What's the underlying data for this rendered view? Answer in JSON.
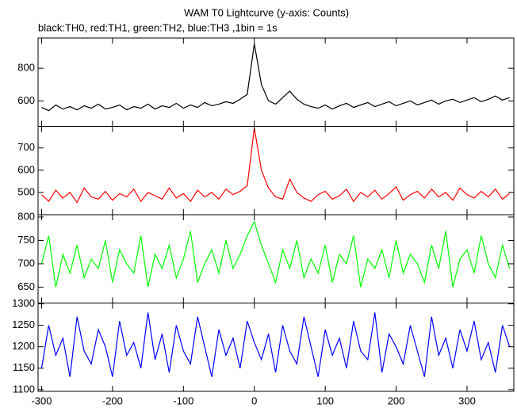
{
  "chart_data": {
    "type": "line",
    "title": "WAM T0 Lightcurve (y-axis: Counts)",
    "subtitle": "black:TH0, red:TH1, green:TH2, blue:TH3 ,1bin = 1s",
    "x": [
      -300,
      -290,
      -280,
      -270,
      -260,
      -250,
      -240,
      -230,
      -220,
      -210,
      -200,
      -190,
      -180,
      -170,
      -160,
      -150,
      -140,
      -130,
      -120,
      -110,
      -100,
      -90,
      -80,
      -70,
      -60,
      -50,
      -40,
      -30,
      -20,
      -10,
      0,
      10,
      20,
      30,
      40,
      50,
      60,
      70,
      80,
      90,
      100,
      110,
      120,
      130,
      140,
      150,
      160,
      170,
      180,
      190,
      200,
      210,
      220,
      230,
      240,
      250,
      260,
      270,
      280,
      290,
      300,
      310,
      320,
      330,
      340,
      350,
      360
    ],
    "xlim": [
      -305,
      366
    ],
    "xticks": [
      -300,
      -200,
      -100,
      0,
      100,
      200,
      300
    ],
    "series": [
      {
        "name": "TH0",
        "color": "#000000",
        "ylim": [
          444,
          985
        ],
        "yticks": [
          600,
          800
        ],
        "values": [
          560,
          540,
          575,
          550,
          565,
          545,
          570,
          555,
          580,
          550,
          560,
          575,
          545,
          565,
          555,
          580,
          550,
          570,
          560,
          585,
          555,
          575,
          560,
          590,
          570,
          580,
          595,
          585,
          610,
          640,
          950,
          700,
          600,
          580,
          620,
          660,
          610,
          580,
          565,
          555,
          575,
          550,
          570,
          585,
          560,
          575,
          590,
          565,
          580,
          595,
          570,
          585,
          600,
          575,
          590,
          605,
          580,
          600,
          610,
          590,
          605,
          620,
          595,
          610,
          630,
          605,
          620
        ]
      },
      {
        "name": "TH1",
        "color": "#ff0000",
        "ylim": [
          400,
          797
        ],
        "yticks": [
          500,
          600,
          700
        ],
        "values": [
          490,
          460,
          510,
          475,
          500,
          455,
          520,
          480,
          470,
          505,
          465,
          495,
          480,
          515,
          460,
          500,
          485,
          470,
          520,
          475,
          495,
          460,
          510,
          480,
          500,
          470,
          515,
          490,
          505,
          530,
          790,
          600,
          520,
          480,
          470,
          560,
          500,
          475,
          460,
          490,
          505,
          470,
          485,
          515,
          460,
          500,
          480,
          510,
          470,
          495,
          525,
          465,
          490,
          505,
          475,
          515,
          480,
          500,
          465,
          520,
          490,
          475,
          505,
          480,
          515,
          470,
          495
        ]
      },
      {
        "name": "TH2",
        "color": "#00ff00",
        "ylim": [
          616,
          805
        ],
        "yticks": [
          650,
          700,
          750,
          800
        ],
        "values": [
          700,
          760,
          650,
          720,
          680,
          740,
          670,
          710,
          690,
          750,
          660,
          730,
          700,
          680,
          760,
          650,
          720,
          690,
          740,
          670,
          710,
          770,
          660,
          700,
          730,
          680,
          750,
          690,
          720,
          760,
          790,
          740,
          700,
          660,
          730,
          690,
          750,
          670,
          710,
          680,
          740,
          660,
          720,
          700,
          760,
          650,
          710,
          690,
          730,
          670,
          750,
          680,
          720,
          700,
          660,
          740,
          690,
          770,
          650,
          710,
          730,
          680,
          760,
          700,
          670,
          740,
          690
        ]
      },
      {
        "name": "TH3",
        "color": "#0000ff",
        "ylim": [
          1096,
          1302
        ],
        "yticks": [
          1100,
          1150,
          1200,
          1250,
          1300
        ],
        "values": [
          1150,
          1250,
          1180,
          1220,
          1130,
          1270,
          1190,
          1160,
          1240,
          1200,
          1130,
          1260,
          1180,
          1210,
          1150,
          1280,
          1170,
          1230,
          1140,
          1250,
          1190,
          1160,
          1270,
          1200,
          1130,
          1240,
          1180,
          1220,
          1150,
          1260,
          1210,
          1170,
          1230,
          1140,
          1250,
          1190,
          1160,
          1270,
          1200,
          1130,
          1240,
          1180,
          1220,
          1150,
          1260,
          1190,
          1170,
          1280,
          1140,
          1230,
          1200,
          1160,
          1250,
          1190,
          1130,
          1270,
          1180,
          1220,
          1150,
          1240,
          1190,
          1260,
          1170,
          1210,
          1140,
          1250,
          1200
        ]
      }
    ]
  }
}
